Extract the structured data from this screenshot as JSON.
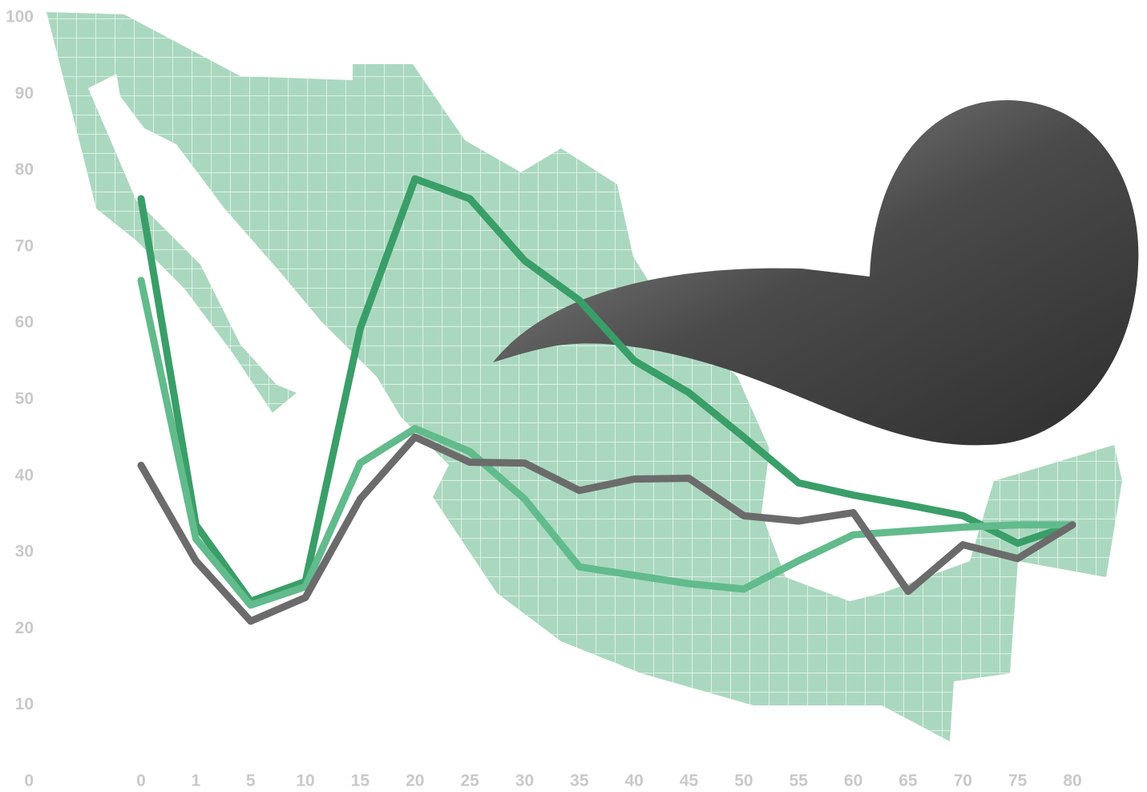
{
  "chart_data": {
    "type": "line",
    "categories": [
      "0",
      "1",
      "5",
      "10",
      "15",
      "20",
      "25",
      "30",
      "35",
      "40",
      "45",
      "50",
      "55",
      "60",
      "65",
      "70",
      "75",
      "80"
    ],
    "series": [
      {
        "color": "#3a9e68",
        "values": [
          76.3,
          33.6,
          23.6,
          26.2,
          59.3,
          78.9,
          76.3,
          68.2,
          63,
          55.1,
          50.9,
          45.1,
          39.1,
          37.5,
          36.2,
          34.8,
          31.2,
          33.6
        ]
      },
      {
        "color": "#62bb8c",
        "values": [
          65.6,
          31.8,
          23.1,
          25.5,
          41.7,
          46.2,
          43.2,
          37,
          28.1,
          27,
          25.9,
          25.2,
          28.9,
          32.3,
          32.8,
          33.3,
          33.6,
          33.6
        ]
      },
      {
        "color": "#6b6b6b",
        "values": [
          41.4,
          28.9,
          21,
          24.1,
          37,
          45.1,
          41.8,
          41.7,
          38.1,
          39.6,
          39.7,
          34.8,
          34.1,
          35.2,
          24.9,
          31,
          29.2,
          33.6
        ]
      }
    ],
    "ylim": [
      0,
      100
    ],
    "yticks": [
      0,
      10,
      20,
      30,
      40,
      50,
      60,
      70,
      80,
      90,
      100
    ]
  }
}
